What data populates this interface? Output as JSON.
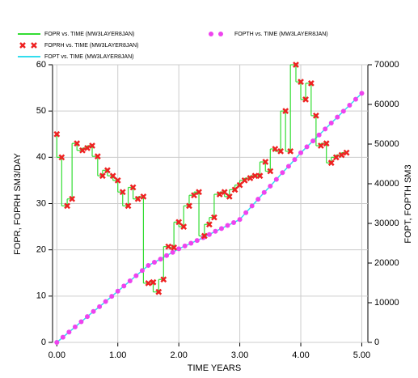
{
  "chart_data": {
    "type": "line",
    "xlabel": "TIME    YEARS",
    "ylabel": "FOPR, FOPRH    SM3/DAY",
    "y2label": "FOPT, FOPTH    SM3",
    "xlim": [
      -0.07,
      5.1
    ],
    "xticks": [
      {
        "value": 0,
        "label": "0.00"
      },
      {
        "value": 1,
        "label": "1.00"
      },
      {
        "value": 2,
        "label": "2.00"
      },
      {
        "value": 3,
        "label": "3.00"
      },
      {
        "value": 4,
        "label": "4.00"
      },
      {
        "value": 5,
        "label": "5.00"
      }
    ],
    "ylim": [
      0,
      60
    ],
    "yticks": [
      0,
      10,
      20,
      30,
      40,
      50,
      60
    ],
    "y2lim": [
      0,
      70000
    ],
    "y2ticks": [
      0,
      10000,
      20000,
      30000,
      40000,
      50000,
      60000,
      70000
    ],
    "grid": true,
    "series": [
      {
        "name": "FOPR vs. TIME (MW3LAYER8JAN)",
        "color": "#33dd33",
        "style": "step",
        "x": [
          0,
          0.08,
          0.17,
          0.25,
          0.33,
          0.42,
          0.5,
          0.58,
          0.67,
          0.75,
          0.83,
          0.92,
          1,
          1.08,
          1.17,
          1.25,
          1.33,
          1.42,
          1.5,
          1.58,
          1.67,
          1.75,
          1.83,
          1.92,
          2,
          2.08,
          2.17,
          2.25,
          2.33,
          2.42,
          2.5,
          2.58,
          2.67,
          2.75,
          2.83,
          2.92,
          3,
          3.08,
          3.17,
          3.25,
          3.33,
          3.42,
          3.5,
          3.58,
          3.67,
          3.75,
          3.83,
          3.92,
          4,
          4.08,
          4.17,
          4.25,
          4.33,
          4.42,
          4.5,
          4.58,
          4.67,
          4.75
        ],
        "values": [
          45,
          40,
          29.5,
          31,
          43,
          41.5,
          42,
          42.5,
          40.2,
          36,
          37.2,
          36,
          35,
          32.5,
          29.5,
          33.5,
          31,
          31.5,
          12.8,
          13,
          10.9,
          13.6,
          20.7,
          20.5,
          26,
          25,
          29.5,
          31.8,
          32.5,
          23,
          25.5,
          27,
          32,
          32.5,
          31.5,
          33,
          34,
          35,
          35.5,
          36,
          36,
          39,
          37,
          41.8,
          41.3,
          50,
          41.3,
          60,
          56.3,
          52.5,
          56,
          49,
          42.5,
          43,
          38.8,
          40,
          40.5,
          41
        ]
      },
      {
        "name": "FOPRH vs. TIME (MW3LAYER8JAN)",
        "color": "#ee2222",
        "style": "cross",
        "x": [
          0,
          0.08,
          0.17,
          0.25,
          0.33,
          0.42,
          0.5,
          0.58,
          0.67,
          0.75,
          0.83,
          0.92,
          1,
          1.08,
          1.17,
          1.25,
          1.33,
          1.42,
          1.5,
          1.58,
          1.67,
          1.75,
          1.83,
          1.92,
          2,
          2.08,
          2.17,
          2.25,
          2.33,
          2.42,
          2.5,
          2.58,
          2.67,
          2.75,
          2.83,
          2.92,
          3,
          3.08,
          3.17,
          3.25,
          3.33,
          3.42,
          3.5,
          3.58,
          3.67,
          3.75,
          3.83,
          3.92,
          4,
          4.08,
          4.17,
          4.25,
          4.33,
          4.42,
          4.5,
          4.58,
          4.67,
          4.75
        ],
        "values": [
          45,
          40,
          29.5,
          31,
          43,
          41.5,
          42,
          42.5,
          40.2,
          36,
          37.2,
          36,
          35,
          32.5,
          29.5,
          33.5,
          31,
          31.5,
          12.8,
          13,
          10.9,
          13.6,
          20.7,
          20.5,
          26,
          25,
          29.5,
          31.8,
          32.5,
          23,
          25.5,
          27,
          32,
          32.5,
          31.5,
          33,
          34,
          35,
          35.5,
          36,
          36,
          39,
          37,
          41.8,
          41.3,
          50,
          41.3,
          60,
          56.3,
          52.5,
          56,
          49,
          42.5,
          43,
          38.8,
          40,
          40.5,
          41
        ]
      },
      {
        "name": "FOPT vs. TIME (MW3LAYER8JAN)",
        "color": "#33ddee",
        "style": "line",
        "axis": "y2",
        "x": [
          0,
          0.1,
          0.2,
          0.3,
          0.4,
          0.5,
          0.6,
          0.7,
          0.8,
          0.9,
          1,
          1.1,
          1.2,
          1.3,
          1.4,
          1.5,
          1.6,
          1.7,
          1.8,
          1.9,
          2,
          2.1,
          2.2,
          2.3,
          2.4,
          2.5,
          2.6,
          2.7,
          2.8,
          2.9,
          3,
          3.1,
          3.2,
          3.3,
          3.4,
          3.5,
          3.6,
          3.7,
          3.8,
          3.9,
          4,
          4.1,
          4.2,
          4.3,
          4.4,
          4.5,
          4.6,
          4.7,
          4.8,
          4.9,
          5
        ],
        "values": [
          0,
          1300,
          2600,
          3900,
          5200,
          6500,
          7800,
          9000,
          10300,
          11600,
          12900,
          14200,
          15500,
          16800,
          18100,
          19400,
          20200,
          21000,
          21900,
          22700,
          23600,
          24300,
          25000,
          25700,
          26400,
          27200,
          28000,
          28700,
          29500,
          30200,
          31000,
          32700,
          34400,
          36100,
          37800,
          39400,
          41100,
          42800,
          44400,
          46100,
          47800,
          49300,
          50800,
          52300,
          53800,
          55300,
          56800,
          58300,
          59800,
          61300,
          62800
        ]
      },
      {
        "name": "FOPTH vs. TIME (MW3LAYER8JAN)",
        "color": "#ee44ee",
        "style": "dots",
        "axis": "y2",
        "x": [
          0,
          0.1,
          0.2,
          0.3,
          0.4,
          0.5,
          0.6,
          0.7,
          0.8,
          0.9,
          1,
          1.1,
          1.2,
          1.3,
          1.4,
          1.5,
          1.6,
          1.7,
          1.8,
          1.9,
          2,
          2.1,
          2.2,
          2.3,
          2.4,
          2.5,
          2.6,
          2.7,
          2.8,
          2.9,
          3,
          3.1,
          3.2,
          3.3,
          3.4,
          3.5,
          3.6,
          3.7,
          3.8,
          3.9,
          4,
          4.1,
          4.2,
          4.3,
          4.4,
          4.5,
          4.6,
          4.7,
          4.8,
          4.9,
          5
        ],
        "values": [
          0,
          1300,
          2600,
          3900,
          5200,
          6500,
          7800,
          9000,
          10300,
          11600,
          12900,
          14200,
          15500,
          16800,
          18100,
          19400,
          20200,
          21000,
          21900,
          22700,
          23600,
          24300,
          25000,
          25700,
          26400,
          27200,
          28000,
          28700,
          29500,
          30200,
          31000,
          32700,
          34400,
          36100,
          37800,
          39400,
          41100,
          42800,
          44400,
          46100,
          47800,
          49300,
          50800,
          52300,
          53800,
          55300,
          56800,
          58300,
          59800,
          61300,
          62800
        ]
      }
    ]
  }
}
